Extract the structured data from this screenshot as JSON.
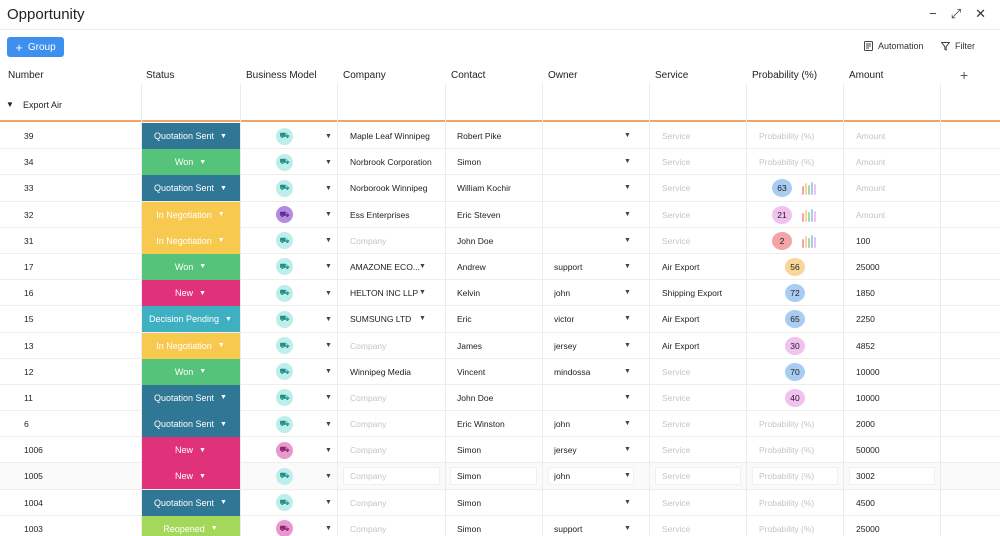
{
  "window": {
    "title": "Opportunity",
    "minimize": "−",
    "expand": "⤢",
    "close": "✕"
  },
  "toolbar": {
    "group_label": "Group",
    "automation_label": "Automation",
    "filter_label": "Filter"
  },
  "columns": [
    "Number",
    "Status",
    "Business Model",
    "Company",
    "Contact",
    "Owner",
    "Service",
    "Probability (%)",
    "Amount"
  ],
  "group": {
    "label": "Export Air"
  },
  "placeholders": {
    "company": "Company",
    "service": "Service",
    "probability": "Probability (%)",
    "amount": "Amount"
  },
  "status_colors": {
    "Quotation Sent": "#2f7795",
    "Won": "#55c47a",
    "In Negotiation": "#f7c94f",
    "New": "#e0327a",
    "Decision Pending": "#3fb0c1",
    "Reopened": "#a3d85a"
  },
  "prob_colors": {
    "63": "#a9cdf2",
    "21": "#f1c2ef",
    "2": "#f3a5a5",
    "56": "#f8d69a",
    "72": "#a9cdf2",
    "65": "#a9cdf2",
    "30": "#f1c2ef",
    "70": "#a9cdf2",
    "40": "#f1c2ef"
  },
  "rows": [
    {
      "number": "39",
      "status": "Quotation Sent",
      "bm": "teal",
      "company": "Maple Leaf Winnipeg",
      "contact": "Robert Pike",
      "owner": "",
      "service": "",
      "probability": "",
      "amount": ""
    },
    {
      "number": "34",
      "status": "Won",
      "bm": "teal",
      "company": "Norbrook Corporation",
      "contact": "Simon",
      "owner": "",
      "service": "",
      "probability": "",
      "amount": ""
    },
    {
      "number": "33",
      "status": "Quotation Sent",
      "bm": "teal",
      "company": "Norborook Winnipeg",
      "contact": "William Kochir",
      "owner": "",
      "service": "",
      "probability": "63",
      "amount": ""
    },
    {
      "number": "32",
      "status": "In Negotiation",
      "bm": "purple",
      "company": "Ess Enterprises",
      "contact": "Eric Steven",
      "owner": "",
      "service": "",
      "probability": "21",
      "amount": ""
    },
    {
      "number": "31",
      "status": "In Negotiation",
      "bm": "teal",
      "company": "",
      "contact": "John Doe",
      "owner": "",
      "service": "",
      "probability": "2",
      "amount": "100"
    },
    {
      "number": "17",
      "status": "Won",
      "bm": "teal",
      "company": "AMAZONE ECO...",
      "company_dd": true,
      "contact": "Andrew",
      "owner": "support",
      "service": "Air Export",
      "probability": "56",
      "amount": "25000"
    },
    {
      "number": "16",
      "status": "New",
      "bm": "teal",
      "company": "HELTON INC LLP",
      "company_dd": true,
      "contact": "Kelvin",
      "owner": "john",
      "service": "Shipping Export",
      "probability": "72",
      "amount": "1850"
    },
    {
      "number": "15",
      "status": "Decision Pending",
      "bm": "teal",
      "company": "SUMSUNG LTD",
      "company_dd": true,
      "contact": "Eric",
      "owner": "victor",
      "service": "Air Export",
      "probability": "65",
      "amount": "2250"
    },
    {
      "number": "13",
      "status": "In Negotiation",
      "bm": "teal",
      "company": "",
      "contact": "James",
      "owner": "jersey",
      "service": "Air Export",
      "probability": "30",
      "amount": "4852"
    },
    {
      "number": "12",
      "status": "Won",
      "bm": "teal",
      "company": "Winnipeg Media",
      "contact": "Vincent",
      "owner": "mindossa",
      "service": "",
      "probability": "70",
      "amount": "10000"
    },
    {
      "number": "11",
      "status": "Quotation Sent",
      "bm": "teal",
      "company": "",
      "contact": "John Doe",
      "owner": "",
      "service": "",
      "probability": "40",
      "amount": "10000"
    },
    {
      "number": "6",
      "status": "Quotation Sent",
      "bm": "teal",
      "company": "",
      "contact": "Eric Winston",
      "owner": "john",
      "service": "",
      "probability": "",
      "amount": "2000"
    },
    {
      "number": "1006",
      "status": "New",
      "bm": "pink",
      "company": "",
      "contact": "Simon",
      "owner": "jersey",
      "service": "",
      "probability": "",
      "amount": "50000"
    },
    {
      "number": "1005",
      "status": "New",
      "bm": "teal",
      "company": "",
      "contact": "Simon",
      "owner": "john",
      "service": "",
      "probability": "",
      "amount": "3002",
      "highlight": true
    },
    {
      "number": "1004",
      "status": "Quotation Sent",
      "bm": "teal",
      "company": "",
      "contact": "Simon",
      "owner": "",
      "service": "",
      "probability": "",
      "amount": "4500"
    },
    {
      "number": "1003",
      "status": "Reopened",
      "bm": "pink",
      "company": "",
      "contact": "Simon",
      "owner": "support",
      "service": "",
      "probability": "",
      "amount": "25000"
    }
  ]
}
